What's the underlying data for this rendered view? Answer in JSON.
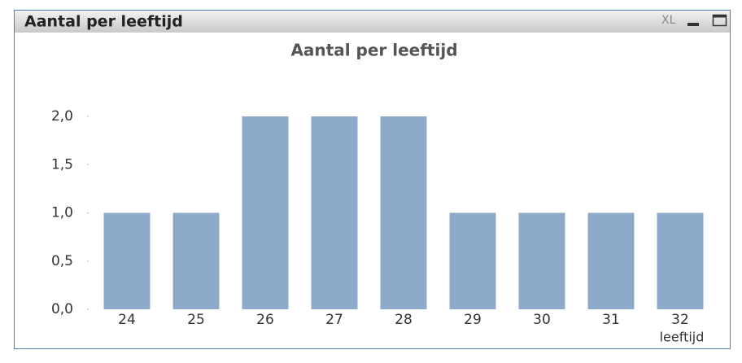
{
  "window": {
    "title": "Aantal per leeftijd",
    "xl_button": "XL"
  },
  "chart_data": {
    "type": "bar",
    "title": "Aantal per leeftijd",
    "x_label": "leeftijd",
    "categories": [
      "24",
      "25",
      "26",
      "27",
      "28",
      "29",
      "30",
      "31",
      "32"
    ],
    "values": [
      1,
      1,
      2,
      2,
      2,
      1,
      1,
      1,
      1
    ],
    "color": "#8eaaca",
    "ylim": [
      0,
      2
    ],
    "yticks": [
      {
        "value": 0,
        "label": "0,0"
      },
      {
        "value": 0.5,
        "label": "0,5"
      },
      {
        "value": 1,
        "label": "1,0"
      },
      {
        "value": 1.5,
        "label": "1,5"
      },
      {
        "value": 2,
        "label": "2,0"
      }
    ],
    "grid": false
  }
}
